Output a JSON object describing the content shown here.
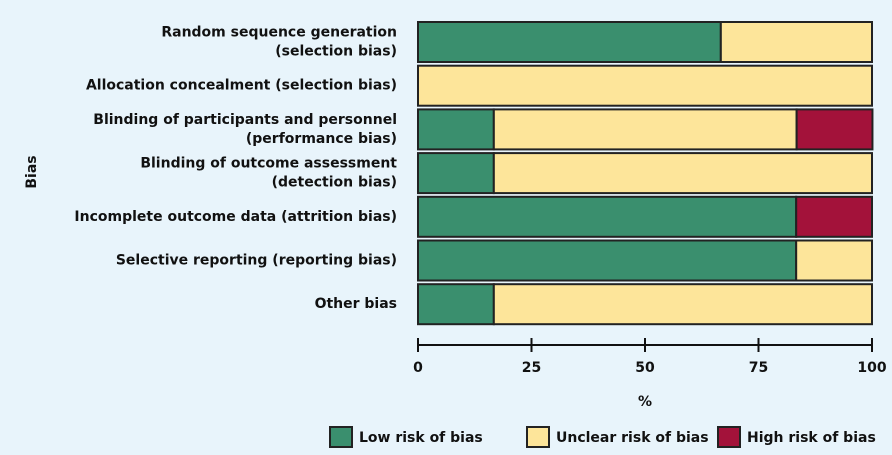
{
  "chart_data": {
    "type": "stacked-barh",
    "y_label": "Bias",
    "x_label": "%",
    "categories": [
      "Random sequence generation\n(selection bias)",
      "Allocation concealment (selection bias)",
      "Blinding of participants and personnel\n(performance bias)",
      "Blinding of outcome assessment\n(detection bias)",
      "Incomplete outcome data (attrition bias)",
      "Selective reporting (reporting bias)",
      "Other bias"
    ],
    "series": [
      {
        "name": "Low risk of bias",
        "color": "#3a8f6e",
        "values": [
          66.7,
          0,
          16.7,
          16.7,
          83.3,
          83.3,
          16.7
        ]
      },
      {
        "name": "Unclear risk of bias",
        "color": "#fde59a",
        "values": [
          33.3,
          100,
          66.7,
          83.3,
          0,
          16.7,
          83.3
        ]
      },
      {
        "name": "High risk of bias",
        "color": "#a3123a",
        "values": [
          0,
          0,
          16.7,
          0,
          16.7,
          0,
          0
        ]
      }
    ],
    "xlim": [
      0,
      100
    ],
    "xticks": [
      0,
      25,
      50,
      75,
      100
    ]
  }
}
